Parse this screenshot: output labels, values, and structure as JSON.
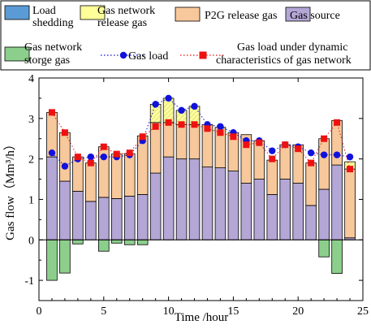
{
  "chart_data": {
    "type": "bar",
    "stacked": true,
    "xlabel": "Time /hour",
    "ylabel": "Gas flow（Mm³/h）",
    "xlim": [
      0,
      25
    ],
    "ylim": [
      -1.5,
      4
    ],
    "xticks": [
      0,
      5,
      10,
      15,
      20,
      25
    ],
    "yticks": [
      -1,
      0,
      1,
      2,
      3,
      4
    ],
    "grid": false,
    "legend_position": "top",
    "x": [
      1,
      2,
      3,
      4,
      5,
      6,
      7,
      8,
      9,
      10,
      11,
      12,
      13,
      14,
      15,
      16,
      17,
      18,
      19,
      20,
      21,
      22,
      23,
      24
    ],
    "series": [
      {
        "name": "Load shedding",
        "kind": "bar",
        "color": "#5b9bd5",
        "values": [
          0,
          0,
          0,
          0,
          0,
          0,
          0,
          0,
          0,
          0,
          0,
          0,
          0,
          0,
          0,
          0,
          0,
          0,
          0,
          0,
          0,
          0,
          0,
          0
        ]
      },
      {
        "name": "Gas network release gas",
        "kind": "bar",
        "color": "#ffff99",
        "values": [
          0,
          0,
          0,
          0,
          0,
          0,
          0,
          0,
          0.45,
          0.6,
          0.35,
          0.45,
          0,
          0,
          0,
          0,
          0,
          0,
          0,
          0,
          0,
          0,
          0,
          0.18
        ]
      },
      {
        "name": "P2G release gas",
        "kind": "bar",
        "color": "#f7c89b",
        "values": [
          1.1,
          1.2,
          0.85,
          0.95,
          1.25,
          1.1,
          1.05,
          1.45,
          1.25,
          0.85,
          0.85,
          0.85,
          1.05,
          1.0,
          0.95,
          1.2,
          0.95,
          0.85,
          0.85,
          0.95,
          1.05,
          1.25,
          1.1,
          1.7
        ]
      },
      {
        "name": "Gas source",
        "kind": "bar",
        "color": "#b4a7d6",
        "values": [
          2.05,
          1.45,
          1.2,
          0.95,
          1.05,
          1.02,
          1.08,
          1.12,
          1.65,
          2.05,
          2.0,
          2.0,
          1.8,
          1.78,
          1.7,
          1.4,
          1.5,
          1.12,
          1.5,
          1.4,
          0.85,
          1.25,
          1.85,
          0.05
        ]
      },
      {
        "name": "Gas network storge gas",
        "kind": "bar",
        "color": "#8ccf8c",
        "values": [
          -1.0,
          -0.82,
          -0.1,
          0,
          -0.28,
          -0.08,
          -0.12,
          -0.12,
          0,
          0,
          0,
          0,
          0,
          0,
          0,
          0,
          0,
          0,
          0,
          0,
          0,
          -0.42,
          -0.83,
          0
        ]
      },
      {
        "name": "Gas load",
        "kind": "line",
        "style": "dotted-blue-circles",
        "color": "#1111dd",
        "values": [
          2.15,
          1.82,
          2.0,
          2.05,
          2.05,
          2.05,
          2.1,
          2.45,
          3.35,
          3.5,
          3.2,
          3.3,
          2.85,
          2.8,
          2.65,
          2.45,
          2.45,
          2.2,
          2.35,
          2.3,
          2.15,
          2.1,
          2.1,
          2.05
        ]
      },
      {
        "name": "Gas load under dynamic characteristics of gas network",
        "kind": "line",
        "style": "dotted-red-squares",
        "color": "#ee1111",
        "values": [
          3.15,
          2.65,
          2.05,
          1.9,
          2.3,
          2.12,
          2.15,
          2.55,
          2.8,
          2.9,
          2.85,
          2.85,
          2.75,
          2.65,
          2.55,
          2.35,
          2.4,
          2.0,
          2.35,
          2.25,
          1.9,
          2.5,
          2.9,
          1.75
        ]
      }
    ]
  }
}
